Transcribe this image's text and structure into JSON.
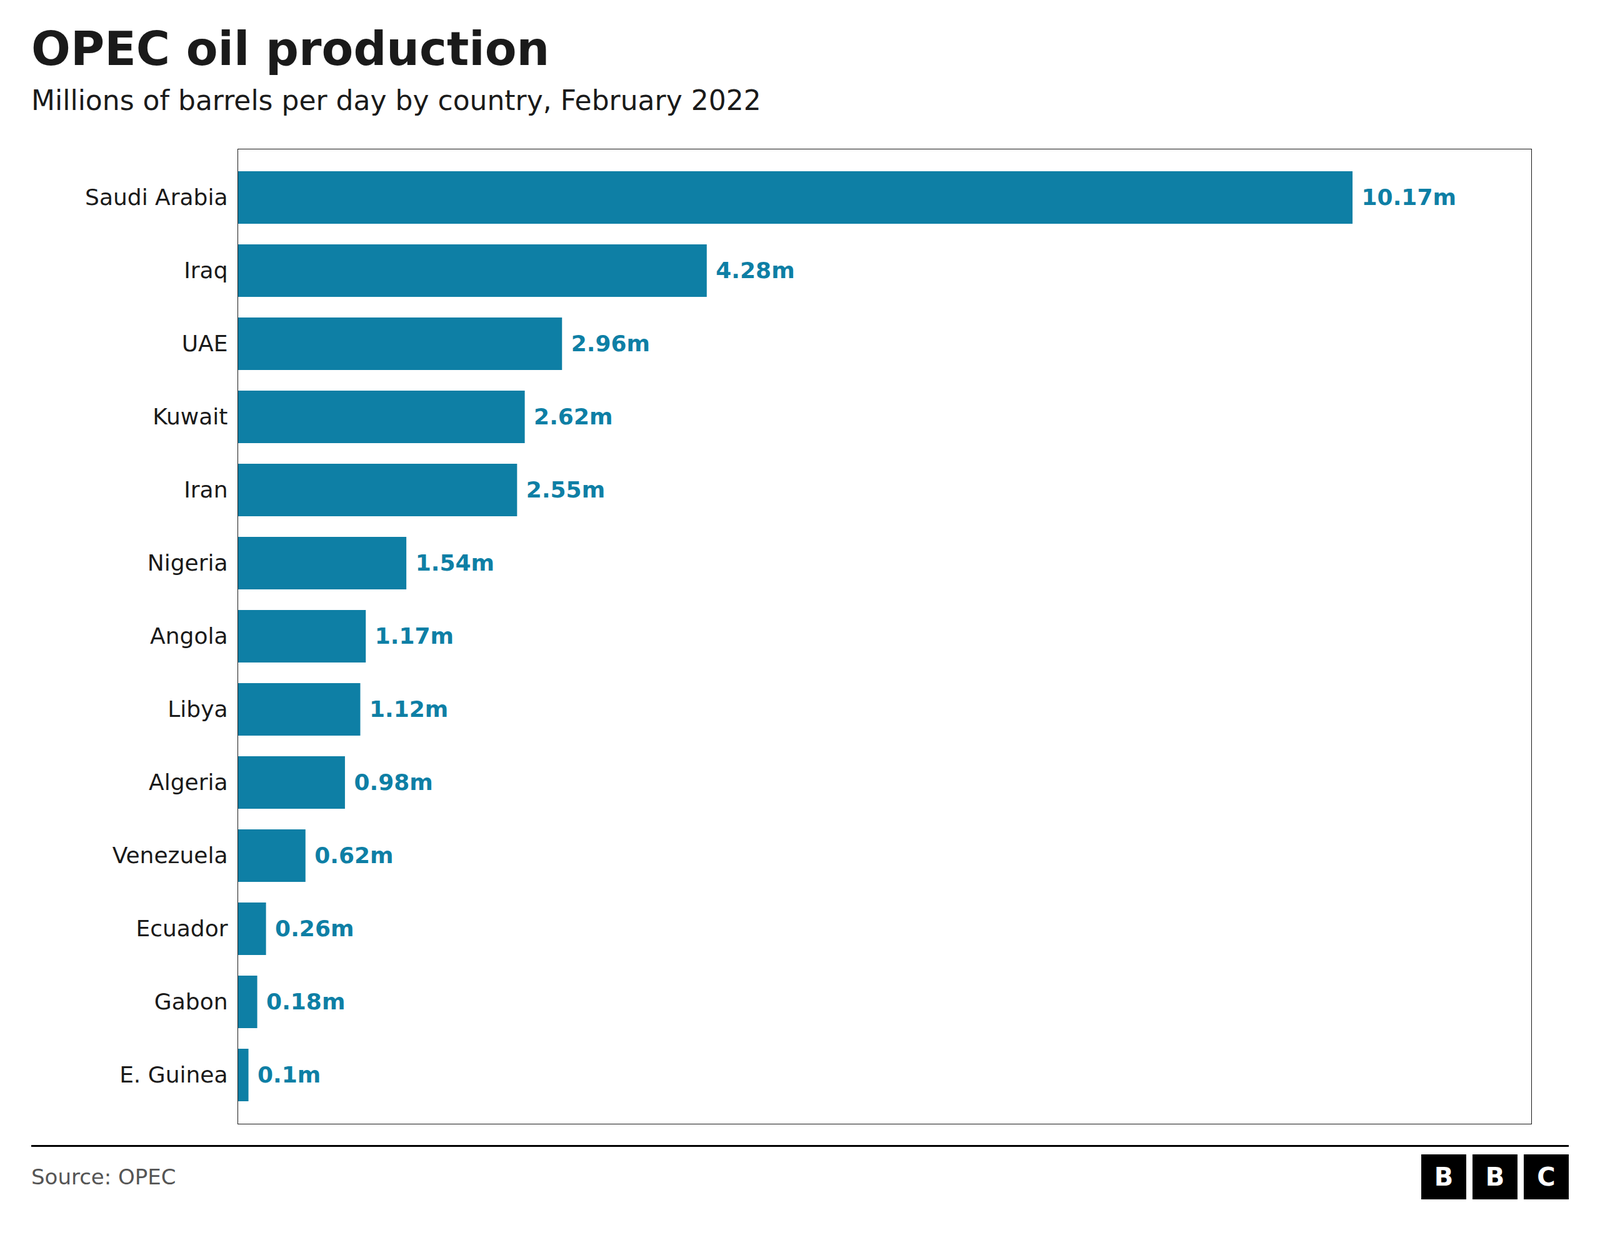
{
  "chart_data": {
    "type": "bar",
    "orientation": "horizontal",
    "title": "OPEC oil production",
    "subtitle": "Millions of barrels per day by country, February 2022",
    "source": "Source: OPEC",
    "logo": [
      "B",
      "B",
      "C"
    ],
    "categories": [
      "Saudi Arabia",
      "Iraq",
      "UAE",
      "Kuwait",
      "Iran",
      "Nigeria",
      "Angola",
      "Libya",
      "Algeria",
      "Venezuela",
      "Ecuador",
      "Gabon",
      "E. Guinea"
    ],
    "values": [
      10.17,
      4.28,
      2.96,
      2.62,
      2.55,
      1.54,
      1.17,
      1.12,
      0.98,
      0.62,
      0.26,
      0.18,
      0.1
    ],
    "value_labels": [
      "10.17m",
      "4.28m",
      "2.96m",
      "2.62m",
      "2.55m",
      "1.54m",
      "1.17m",
      "1.12m",
      "0.98m",
      "0.62m",
      "0.26m",
      "0.18m",
      "0.1m"
    ],
    "data_labels": true,
    "color": "#0e7fa5",
    "xlim": [
      0,
      11.8
    ],
    "grid": false,
    "tick_labels": "y"
  }
}
